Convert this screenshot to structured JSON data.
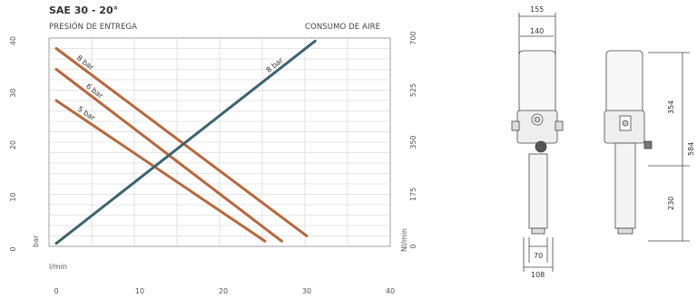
{
  "chart_data": {
    "type": "line",
    "title": "SAE 30 - 20°",
    "subtitle_left": "PRESIÓN DE ENTREGA",
    "subtitle_right": "CONSUMO DE AIRE",
    "xlabel": "l/min",
    "ylabel_left": "bar",
    "ylabel_right": "Nl/min",
    "xlim": [
      0,
      40
    ],
    "ylim_left": [
      0,
      40
    ],
    "ylim_right": [
      0,
      700
    ],
    "x_ticks": [
      0,
      10,
      20,
      30,
      40
    ],
    "y_left_ticks": [
      0,
      10,
      20,
      30,
      40
    ],
    "y_right_ticks": [
      0,
      175,
      350,
      525,
      700
    ],
    "grid": true,
    "series": [
      {
        "name": "8 bar",
        "axis": "left",
        "color": "#b8683a",
        "x": [
          0,
          30
        ],
        "y": [
          38,
          2
        ]
      },
      {
        "name": "6 bar",
        "axis": "left",
        "color": "#b8683a",
        "x": [
          0,
          27
        ],
        "y": [
          34,
          1
        ]
      },
      {
        "name": "5 bar",
        "axis": "left",
        "color": "#b8683a",
        "x": [
          0,
          25
        ],
        "y": [
          28,
          1
        ]
      },
      {
        "name": "8 bar",
        "axis": "right",
        "color": "#3c6470",
        "x": [
          0,
          31
        ],
        "y": [
          10,
          690
        ]
      }
    ]
  },
  "drawing": {
    "dimensions": {
      "width_outer": "155",
      "width_inner": "140",
      "width_tube": "70",
      "width_base": "108",
      "height_upper": "354",
      "height_lower": "230",
      "height_total": "584"
    }
  }
}
